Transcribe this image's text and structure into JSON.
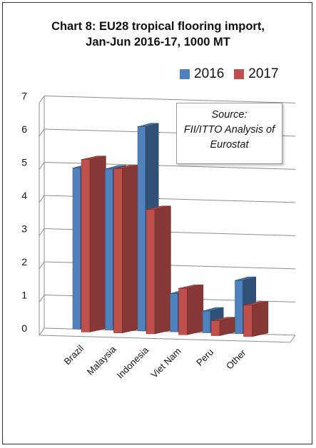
{
  "chart_data": {
    "type": "bar",
    "title_line1": "Chart 8: EU28 tropical flooring import,",
    "title_line2": "Jan-Jun 2016-17, 1000 MT",
    "categories": [
      "Brazil",
      "Malaysia",
      "Indonesia",
      "Viet Nam",
      "Peru",
      "Other"
    ],
    "series": [
      {
        "name": "2016",
        "values": [
          4.85,
          4.85,
          6.15,
          1.15,
          0.65,
          1.6
        ],
        "color": "#4F81BD"
      },
      {
        "name": "2017",
        "values": [
          5.2,
          4.95,
          3.75,
          1.4,
          0.45,
          0.95
        ],
        "color": "#C0504D"
      }
    ],
    "ylim": [
      0,
      7
    ],
    "yticks": [
      "0",
      "1",
      "2",
      "3",
      "4",
      "5",
      "6",
      "7"
    ],
    "legend_position": "top-right",
    "annotation": {
      "line1": "Source:",
      "line2": "FII/ITTO Analysis of",
      "line3": "Eurostat"
    }
  }
}
